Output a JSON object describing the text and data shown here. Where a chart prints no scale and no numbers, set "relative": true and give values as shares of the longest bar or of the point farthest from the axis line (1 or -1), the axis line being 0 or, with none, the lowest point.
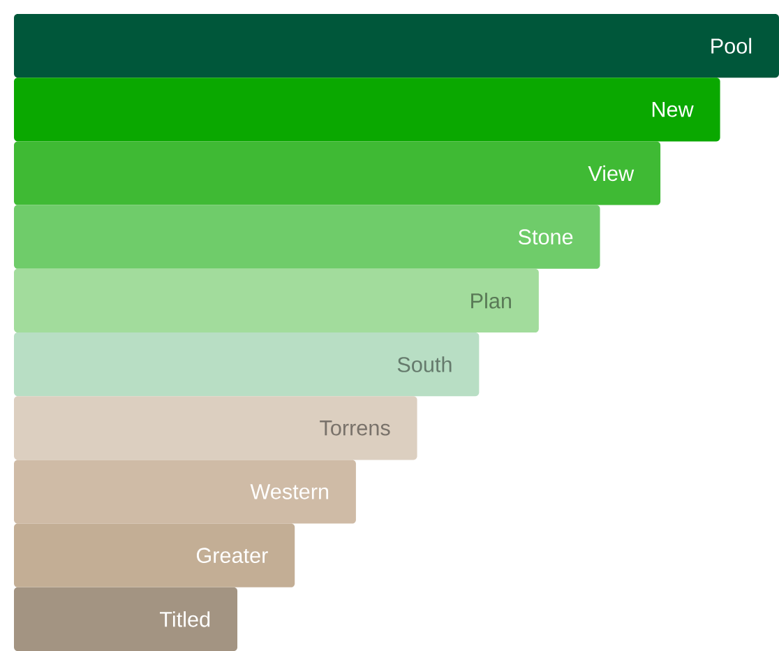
{
  "chart_data": {
    "type": "bar",
    "orientation": "horizontal",
    "relative": true,
    "categories": [
      "Pool",
      "New",
      "View",
      "Stone",
      "Plan",
      "South",
      "Torrens",
      "Western",
      "Greater",
      "Titled"
    ],
    "values": [
      1,
      0.923,
      0.845,
      0.766,
      0.686,
      0.608,
      0.527,
      0.447,
      0.367,
      0.292
    ],
    "colors": [
      "#00573a",
      "#0aa800",
      "#3fba34",
      "#6fcc6a",
      "#a2dc9c",
      "#b8dec4",
      "#dccfc0",
      "#cfbba6",
      "#c3ae95",
      "#a39482"
    ]
  }
}
